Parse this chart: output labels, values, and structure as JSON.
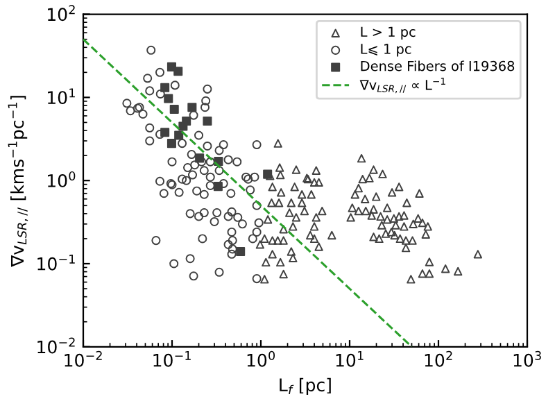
{
  "chart_data": {
    "type": "scatter",
    "xlabel": "L$_{f}$ [pc]",
    "ylabel": "∇v$_{LSR,//}$ [kms$^{−1}$pc$^{−1}$]",
    "log": "xy",
    "xlim": [
      0.01,
      1000
    ],
    "ylim": [
      0.01,
      100
    ],
    "xticks": [
      {
        "value": 0.01,
        "label": "10$^{−2}$"
      },
      {
        "value": 0.1,
        "label": "10$^{−1}$"
      },
      {
        "value": 1,
        "label": "10$^{0}$"
      },
      {
        "value": 10,
        "label": "10$^{1}$"
      },
      {
        "value": 100,
        "label": "10$^{2}$"
      },
      {
        "value": 1000,
        "label": "10$^{3}$"
      }
    ],
    "yticks": [
      {
        "value": 0.01,
        "label": "10$^{−2}$"
      },
      {
        "value": 0.1,
        "label": "10$^{−1}$"
      },
      {
        "value": 1,
        "label": "10$^{0}$"
      },
      {
        "value": 10,
        "label": "10$^{1}$"
      },
      {
        "value": 100,
        "label": "10$^{2}$"
      }
    ],
    "grid": false,
    "legend": "top right",
    "series": [
      {
        "name": "L > 1 pc",
        "marker": "triangle",
        "color": "#404040",
        "x": [
          1.56,
          1.63,
          2.5,
          4.2,
          13.6,
          18.6,
          23.5,
          14,
          3.4,
          1.27,
          1.66,
          3.3,
          4.0,
          4.5,
          1.35,
          1.69,
          2.4,
          2.9,
          3.7,
          1.32,
          1.6,
          2.2,
          2.9,
          3.1,
          2.1,
          2.5,
          4.2,
          4.9,
          1.2,
          1.8,
          2.3,
          4.0,
          3.6,
          4.0,
          4.5,
          6.3,
          1.35,
          1.55,
          1.8,
          1.1,
          0.98,
          1.35,
          2.2,
          2.3,
          1.14,
          1.66,
          1.8,
          1.1,
          16.7,
          12.6,
          11.5,
          14.9,
          19.9,
          30,
          36,
          44,
          61,
          10.7,
          12.6,
          10.3,
          15.2,
          18.6,
          26.5,
          17.7,
          22.3,
          26.5,
          31.5,
          36,
          41,
          59,
          66,
          76,
          52,
          41,
          33,
          23,
          18.6,
          21.5,
          25.5,
          29.5,
          32,
          37,
          43,
          51,
          72,
          43,
          49,
          66,
          79,
          79,
          120,
          166,
          278
        ],
        "values": [
          2.8,
          1.43,
          1.35,
          1.32,
          1.85,
          1.35,
          1.2,
          1.04,
          1.04,
          1.14,
          1.17,
          1.07,
          0.95,
          0.95,
          0.84,
          0.72,
          0.84,
          0.68,
          0.68,
          0.54,
          0.54,
          0.54,
          0.54,
          0.43,
          0.41,
          0.36,
          0.36,
          0.43,
          0.34,
          0.26,
          0.28,
          0.28,
          0.22,
          0.2,
          0.16,
          0.22,
          0.19,
          0.19,
          0.19,
          0.2,
          0.17,
          0.13,
          0.14,
          0.117,
          0.104,
          0.104,
          0.075,
          0.065,
          1.07,
          0.81,
          0.68,
          0.6,
          0.64,
          0.72,
          0.84,
          0.54,
          0.7,
          0.47,
          0.43,
          0.36,
          0.43,
          0.45,
          0.47,
          0.38,
          0.37,
          0.34,
          0.35,
          0.37,
          0.38,
          0.35,
          0.31,
          0.28,
          0.3,
          0.28,
          0.29,
          0.29,
          0.21,
          0.2,
          0.23,
          0.24,
          0.22,
          0.2,
          0.19,
          0.19,
          0.225,
          0.155,
          0.065,
          0.076,
          0.076,
          0.105,
          0.087,
          0.081,
          0.13
        ]
      },
      {
        "name": "L⩽ 1 pc",
        "marker": "circle",
        "color": "#404040",
        "x": [
          0.058,
          0.073,
          0.053,
          0.056,
          0.074,
          0.108,
          0.25,
          0.24,
          0.235,
          0.031,
          0.034,
          0.041,
          0.047,
          0.043,
          0.175,
          0.056,
          0.056,
          0.073,
          0.13,
          0.2,
          0.25,
          0.34,
          0.38,
          0.166,
          0.1,
          0.15,
          0.18,
          0.215,
          0.27,
          0.43,
          0.54,
          0.68,
          0.073,
          0.097,
          0.13,
          0.17,
          0.23,
          0.34,
          0.27,
          0.081,
          0.1,
          0.12,
          0.145,
          0.19,
          0.23,
          0.27,
          0.46,
          0.38,
          0.16,
          0.2,
          0.23,
          0.32,
          0.3,
          0.43,
          0.55,
          0.47,
          0.47,
          0.62,
          0.48,
          0.43,
          0.48,
          0.47,
          0.22,
          0.066,
          0.105,
          0.16,
          0.175,
          0.34,
          0.9,
          0.9,
          0.81,
          0.95,
          0.9,
          0.76,
          0.85,
          0.72,
          0.9
        ],
        "values": [
          37,
          20,
          17,
          12,
          11,
          14,
          12.6,
          9.1,
          7.6,
          8.5,
          6.9,
          7.4,
          6.3,
          7.6,
          6.1,
          4.3,
          3.0,
          3.6,
          2.8,
          3.5,
          2.6,
          2.3,
          2.7,
          2.06,
          1.68,
          1.43,
          1.54,
          1.68,
          1.68,
          1.78,
          1.68,
          1.1,
          0.98,
          0.92,
          1.04,
          1.17,
          1.32,
          1.32,
          1.1,
          0.7,
          0.89,
          0.72,
          1.0,
          0.75,
          0.68,
          0.87,
          0.7,
          0.92,
          0.4,
          0.37,
          0.41,
          0.41,
          0.32,
          0.37,
          0.36,
          0.42,
          0.24,
          0.3,
          0.19,
          0.17,
          0.15,
          0.13,
          0.2,
          0.19,
          0.1,
          0.115,
          0.071,
          0.079,
          0.066,
          0.24,
          0.2,
          0.31,
          0.5,
          0.77,
          1.1,
          1.04,
          2.7
        ]
      },
      {
        "name": "Dense Fibers of I19368",
        "marker": "square",
        "color": "#404040",
        "x": [
          0.099,
          0.117,
          0.083,
          0.091,
          0.106,
          0.168,
          0.145,
          0.133,
          0.083,
          0.119,
          0.099,
          0.25,
          0.204,
          0.333,
          0.59,
          1.19,
          0.33
        ],
        "values": [
          23.3,
          20.6,
          13.1,
          9.7,
          7.2,
          7.6,
          5.2,
          4.5,
          3.8,
          3.5,
          2.8,
          5.2,
          1.86,
          1.7,
          0.14,
          1.19,
          0.85
        ]
      },
      {
        "name": "∇v$_{LSR,//}$ ∝ L$^{−1}$",
        "type": "line",
        "line_style": "dashed",
        "color": "#2ca02c",
        "x": [
          0.01,
          50
        ],
        "values": [
          50,
          0.01
        ]
      }
    ]
  }
}
